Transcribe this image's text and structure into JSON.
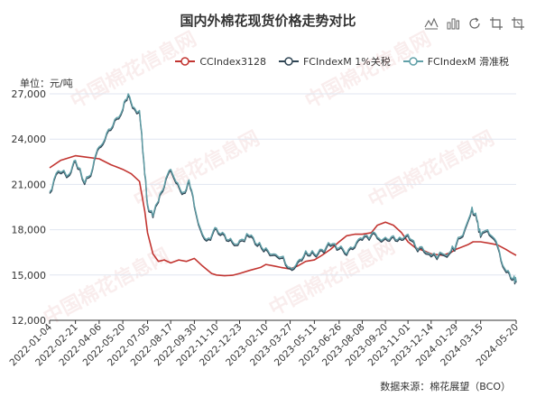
{
  "title": "国内外棉花现货价格走势对比",
  "unit": "单位：元/吨",
  "source": "数据来源：棉花展望（BCO）",
  "watermark": "中国棉花信息网",
  "toolbox": [
    "line-switch-icon",
    "bar-switch-icon",
    "restore-icon",
    "zoom-icon",
    "zoom-reset-icon"
  ],
  "chart_data": {
    "type": "line",
    "title": "国内外棉花现货价格走势对比",
    "ylabel": "单位：元/吨",
    "ylim": [
      12000,
      27000
    ],
    "yticks": [
      "12,000",
      "15,000",
      "18,000",
      "21,000",
      "24,000",
      "27,000"
    ],
    "xlim": [
      "2022-01-04",
      "2024-05-20"
    ],
    "xticks": [
      "2022-01-04",
      "2022-02-21",
      "2022-04-06",
      "2022-05-20",
      "2022-07-05",
      "2022-08-17",
      "2022-09-30",
      "2022-11-10",
      "2022-12-23",
      "2023-02-10",
      "2023-03-27",
      "2023-05-11",
      "2023-06-26",
      "2023-08-08",
      "2023-09-20",
      "2023-11-01",
      "2023-12-14",
      "2024-01-29",
      "2024-03-15",
      "2024-05-20"
    ],
    "grid": true,
    "legend_position": "top-right",
    "series": [
      {
        "name": "CCIndex3128",
        "color": "#c23531",
        "points": [
          [
            "2022-01-04",
            22100
          ],
          [
            "2022-01-25",
            22600
          ],
          [
            "2022-02-21",
            22900
          ],
          [
            "2022-03-15",
            22800
          ],
          [
            "2022-04-06",
            22700
          ],
          [
            "2022-04-28",
            22300
          ],
          [
            "2022-05-20",
            22000
          ],
          [
            "2022-06-05",
            21700
          ],
          [
            "2022-06-20",
            21200
          ],
          [
            "2022-06-30",
            19200
          ],
          [
            "2022-07-05",
            17800
          ],
          [
            "2022-07-15",
            16400
          ],
          [
            "2022-07-25",
            15900
          ],
          [
            "2022-08-05",
            16000
          ],
          [
            "2022-08-17",
            15800
          ],
          [
            "2022-09-01",
            16000
          ],
          [
            "2022-09-15",
            15900
          ],
          [
            "2022-09-30",
            16100
          ],
          [
            "2022-10-15",
            15600
          ],
          [
            "2022-11-01",
            15100
          ],
          [
            "2022-11-10",
            15000
          ],
          [
            "2022-11-25",
            14950
          ],
          [
            "2022-12-10",
            14980
          ],
          [
            "2022-12-23",
            15100
          ],
          [
            "2023-01-10",
            15300
          ],
          [
            "2023-01-31",
            15500
          ],
          [
            "2023-02-10",
            15700
          ],
          [
            "2023-02-25",
            15600
          ],
          [
            "2023-03-10",
            15500
          ],
          [
            "2023-03-27",
            15400
          ],
          [
            "2023-04-10",
            15600
          ],
          [
            "2023-04-25",
            15900
          ],
          [
            "2023-05-11",
            16000
          ],
          [
            "2023-05-25",
            16300
          ],
          [
            "2023-06-10",
            16700
          ],
          [
            "2023-06-26",
            17200
          ],
          [
            "2023-07-10",
            17600
          ],
          [
            "2023-07-25",
            17700
          ],
          [
            "2023-08-08",
            17700
          ],
          [
            "2023-08-25",
            17800
          ],
          [
            "2023-09-05",
            18300
          ],
          [
            "2023-09-20",
            18500
          ],
          [
            "2023-10-05",
            18300
          ],
          [
            "2023-10-20",
            17800
          ],
          [
            "2023-11-01",
            17200
          ],
          [
            "2023-11-15",
            16800
          ],
          [
            "2023-12-01",
            16600
          ],
          [
            "2023-12-14",
            16400
          ],
          [
            "2024-01-05",
            16300
          ],
          [
            "2024-01-20",
            16500
          ],
          [
            "2024-01-29",
            16700
          ],
          [
            "2024-02-20",
            17000
          ],
          [
            "2024-03-01",
            17200
          ],
          [
            "2024-03-15",
            17200
          ],
          [
            "2024-04-01",
            17100
          ],
          [
            "2024-04-15",
            17000
          ],
          [
            "2024-05-01",
            16700
          ],
          [
            "2024-05-10",
            16500
          ],
          [
            "2024-05-20",
            16300
          ]
        ]
      },
      {
        "name": "FCIndexM 1%关税",
        "color": "#2f4554",
        "points": [
          [
            "2022-01-04",
            20400
          ],
          [
            "2022-01-20",
            21800
          ],
          [
            "2022-02-10",
            21600
          ],
          [
            "2022-02-21",
            22500
          ],
          [
            "2022-03-10",
            21000
          ],
          [
            "2022-03-25",
            22000
          ],
          [
            "2022-04-06",
            23400
          ],
          [
            "2022-04-20",
            24300
          ],
          [
            "2022-05-05",
            25200
          ],
          [
            "2022-05-20",
            25900
          ],
          [
            "2022-05-30",
            26900
          ],
          [
            "2022-06-10",
            26000
          ],
          [
            "2022-06-20",
            25800
          ],
          [
            "2022-06-28",
            22500
          ],
          [
            "2022-07-05",
            19600
          ],
          [
            "2022-07-15",
            18800
          ],
          [
            "2022-07-25",
            19800
          ],
          [
            "2022-08-05",
            20800
          ],
          [
            "2022-08-17",
            21900
          ],
          [
            "2022-08-30",
            21000
          ],
          [
            "2022-09-10",
            20400
          ],
          [
            "2022-09-20",
            21200
          ],
          [
            "2022-09-30",
            19500
          ],
          [
            "2022-10-15",
            17600
          ],
          [
            "2022-10-30",
            17300
          ],
          [
            "2022-11-10",
            18000
          ],
          [
            "2022-11-25",
            17600
          ],
          [
            "2022-12-10",
            17100
          ],
          [
            "2022-12-23",
            17200
          ],
          [
            "2023-01-10",
            17500
          ],
          [
            "2023-01-25",
            16900
          ],
          [
            "2023-02-10",
            16700
          ],
          [
            "2023-02-25",
            16300
          ],
          [
            "2023-03-10",
            16100
          ],
          [
            "2023-03-27",
            15400
          ],
          [
            "2023-04-10",
            15800
          ],
          [
            "2023-04-25",
            16500
          ],
          [
            "2023-05-11",
            16300
          ],
          [
            "2023-05-25",
            16600
          ],
          [
            "2023-06-10",
            16900
          ],
          [
            "2023-06-26",
            16700
          ],
          [
            "2023-07-10",
            16300
          ],
          [
            "2023-07-25",
            16800
          ],
          [
            "2023-08-08",
            17300
          ],
          [
            "2023-08-25",
            17600
          ],
          [
            "2023-09-05",
            17400
          ],
          [
            "2023-09-20",
            17400
          ],
          [
            "2023-10-05",
            17500
          ],
          [
            "2023-10-20",
            17300
          ],
          [
            "2023-11-01",
            17600
          ],
          [
            "2023-11-15",
            16800
          ],
          [
            "2023-12-01",
            16500
          ],
          [
            "2023-12-14",
            16200
          ],
          [
            "2024-01-05",
            16300
          ],
          [
            "2024-01-20",
            16500
          ],
          [
            "2024-01-29",
            16900
          ],
          [
            "2024-02-15",
            18000
          ],
          [
            "2024-02-28",
            19400
          ],
          [
            "2024-03-08",
            18600
          ],
          [
            "2024-03-15",
            17500
          ],
          [
            "2024-03-28",
            17900
          ],
          [
            "2024-04-10",
            17300
          ],
          [
            "2024-04-22",
            15900
          ],
          [
            "2024-05-05",
            15200
          ],
          [
            "2024-05-15",
            14700
          ],
          [
            "2024-05-20",
            14500
          ]
        ]
      },
      {
        "name": "FCIndexM 滑准税",
        "color": "#61a0a8",
        "points": [
          [
            "2022-01-04",
            20500
          ],
          [
            "2022-01-20",
            21900
          ],
          [
            "2022-02-10",
            21700
          ],
          [
            "2022-02-21",
            22600
          ],
          [
            "2022-03-10",
            21100
          ],
          [
            "2022-03-25",
            22100
          ],
          [
            "2022-04-06",
            23500
          ],
          [
            "2022-04-20",
            24400
          ],
          [
            "2022-05-05",
            25300
          ],
          [
            "2022-05-20",
            26000
          ],
          [
            "2022-05-30",
            27000
          ],
          [
            "2022-06-10",
            26100
          ],
          [
            "2022-06-20",
            25900
          ],
          [
            "2022-06-28",
            22600
          ],
          [
            "2022-07-05",
            19700
          ],
          [
            "2022-07-15",
            18900
          ],
          [
            "2022-07-25",
            19900
          ],
          [
            "2022-08-05",
            20900
          ],
          [
            "2022-08-17",
            22000
          ],
          [
            "2022-08-30",
            21100
          ],
          [
            "2022-09-10",
            20500
          ],
          [
            "2022-09-20",
            21300
          ],
          [
            "2022-09-30",
            19600
          ],
          [
            "2022-10-15",
            17700
          ],
          [
            "2022-10-30",
            17400
          ],
          [
            "2022-11-10",
            18100
          ],
          [
            "2022-11-25",
            17700
          ],
          [
            "2022-12-10",
            17200
          ],
          [
            "2022-12-23",
            17300
          ],
          [
            "2023-01-10",
            17600
          ],
          [
            "2023-01-25",
            17000
          ],
          [
            "2023-02-10",
            16800
          ],
          [
            "2023-02-25",
            16400
          ],
          [
            "2023-03-10",
            16200
          ],
          [
            "2023-03-27",
            15500
          ],
          [
            "2023-04-10",
            15900
          ],
          [
            "2023-04-25",
            16600
          ],
          [
            "2023-05-11",
            16400
          ],
          [
            "2023-05-25",
            16700
          ],
          [
            "2023-06-10",
            17000
          ],
          [
            "2023-06-26",
            16800
          ],
          [
            "2023-07-10",
            16400
          ],
          [
            "2023-07-25",
            16900
          ],
          [
            "2023-08-08",
            17400
          ],
          [
            "2023-08-25",
            17700
          ],
          [
            "2023-09-05",
            17500
          ],
          [
            "2023-09-20",
            17500
          ],
          [
            "2023-10-05",
            17600
          ],
          [
            "2023-10-20",
            17400
          ],
          [
            "2023-11-01",
            17700
          ],
          [
            "2023-11-15",
            16900
          ],
          [
            "2023-12-01",
            16600
          ],
          [
            "2023-12-14",
            16300
          ],
          [
            "2024-01-05",
            16400
          ],
          [
            "2024-01-20",
            16600
          ],
          [
            "2024-01-29",
            17000
          ],
          [
            "2024-02-15",
            18100
          ],
          [
            "2024-02-28",
            19500
          ],
          [
            "2024-03-08",
            18700
          ],
          [
            "2024-03-15",
            17600
          ],
          [
            "2024-03-28",
            18000
          ],
          [
            "2024-04-10",
            17400
          ],
          [
            "2024-04-22",
            16000
          ],
          [
            "2024-05-05",
            15300
          ],
          [
            "2024-05-15",
            14800
          ],
          [
            "2024-05-20",
            14600
          ]
        ]
      }
    ]
  }
}
